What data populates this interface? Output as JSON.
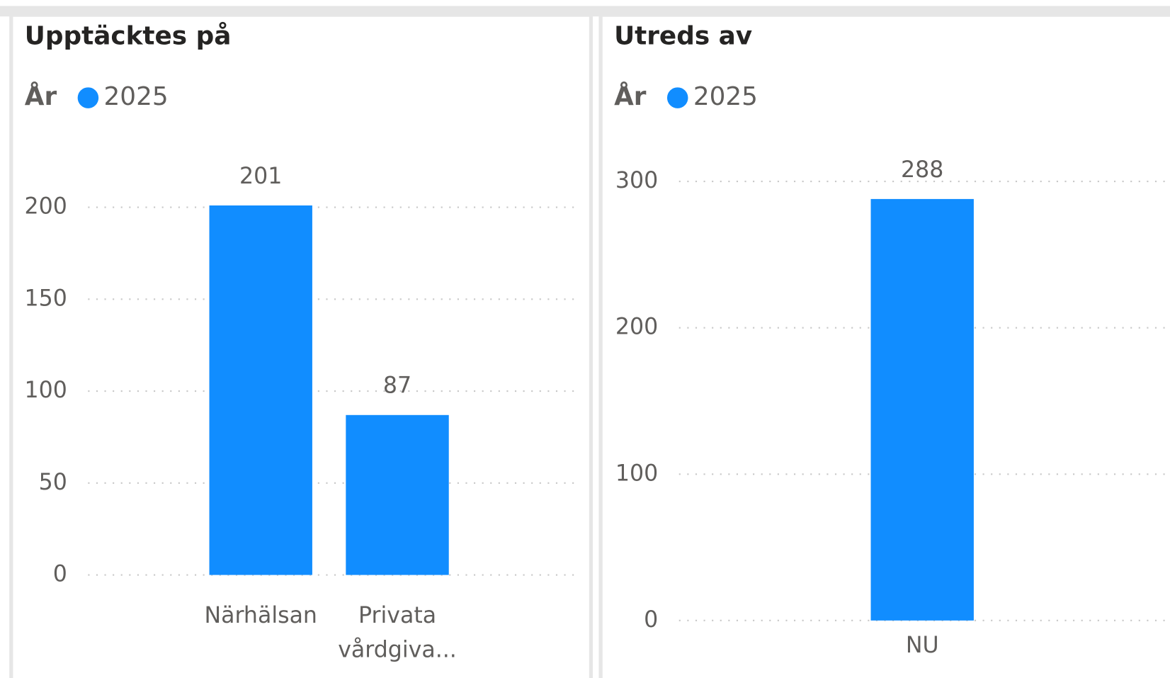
{
  "chart_data": [
    {
      "type": "bar",
      "title": "Upptäcktes på",
      "legend_title": "År",
      "categories": [
        "Närhälsan",
        "Privata vårdgiva..."
      ],
      "series": [
        {
          "name": "2025",
          "color": "#118dff",
          "values": [
            201,
            87
          ]
        }
      ],
      "ylim": [
        0,
        210
      ],
      "yticks": [
        0,
        50,
        100,
        150,
        200
      ],
      "grid": true
    },
    {
      "type": "bar",
      "title": "Utreds av",
      "legend_title": "År",
      "categories": [
        "NU"
      ],
      "series": [
        {
          "name": "2025",
          "color": "#118dff",
          "values": [
            288
          ]
        }
      ],
      "ylim": [
        0,
        300
      ],
      "yticks": [
        0,
        100,
        200,
        300
      ],
      "grid": true
    }
  ]
}
